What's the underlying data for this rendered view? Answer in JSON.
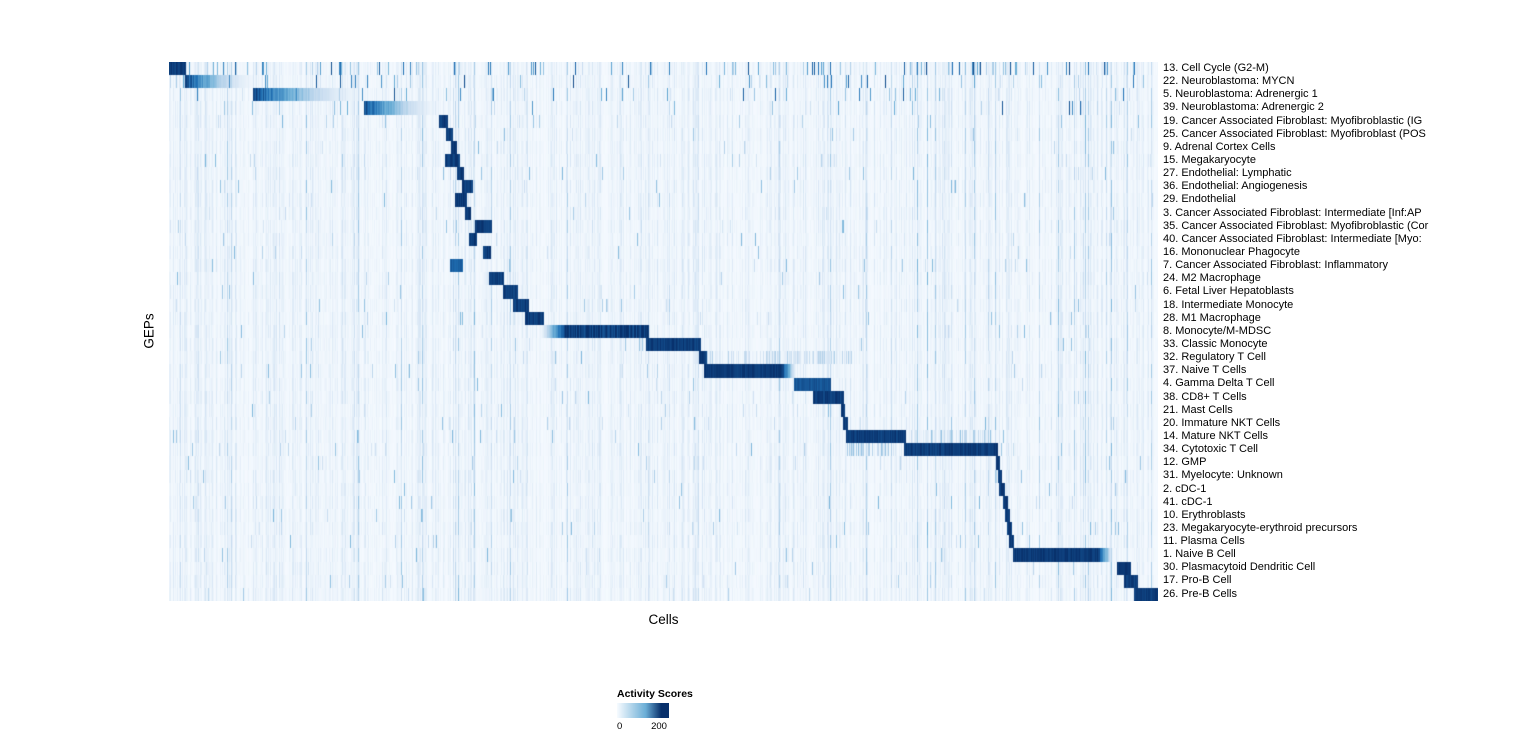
{
  "chart_data": {
    "type": "heatmap",
    "title": "",
    "xlabel": "Cells",
    "ylabel": "GEPs",
    "x_tick_labels": [],
    "grid": false,
    "colormap": {
      "name": "Blues",
      "low": "#f7fbff",
      "mid": "#6baed6",
      "high": "#08306b"
    },
    "legend": {
      "title": "Activity Scores",
      "min": 0,
      "max": 200,
      "min_label": "0",
      "max_label": "200",
      "position": "bottom"
    },
    "rows": [
      {
        "label": "13. Cell Cycle (G2-M)",
        "block_start": 0.0,
        "block_end": 0.017,
        "speckle": 0.1
      },
      {
        "label": "22. Neuroblastoma: MYCN",
        "block_start": 0.016,
        "block_end": 0.09,
        "fade": "right",
        "speckle": 0.03
      },
      {
        "label": "5. Neuroblastoma: Adrenergic 1",
        "block_start": 0.085,
        "block_end": 0.2,
        "fade": "right",
        "speckle": 0.03
      },
      {
        "label": "39. Neuroblastoma: Adrenergic 2",
        "block_start": 0.197,
        "block_end": 0.275,
        "fade": "right",
        "speckle": 0.02
      },
      {
        "label": "19. Cancer Associated Fibroblast: Myofibroblastic (IG",
        "block_start": 0.273,
        "block_end": 0.282
      },
      {
        "label": "25. Cancer Associated Fibroblast: Myofibroblast (POS",
        "block_start": 0.28,
        "block_end": 0.287
      },
      {
        "label": "9. Adrenal Cortex Cells",
        "block_start": 0.285,
        "block_end": 0.291
      },
      {
        "label": "15. Megakaryocyte",
        "block_start": 0.279,
        "block_end": 0.294
      },
      {
        "label": "27. Endothelial: Lymphatic",
        "block_start": 0.291,
        "block_end": 0.298
      },
      {
        "label": "36. Endothelial: Angiogenesis",
        "block_start": 0.296,
        "block_end": 0.307
      },
      {
        "label": "29. Endothelial",
        "block_start": 0.289,
        "block_end": 0.301
      },
      {
        "label": "3. Cancer Associated Fibroblast: Intermediate [Inf:AP",
        "block_start": 0.299,
        "block_end": 0.305
      },
      {
        "label": "35. Cancer Associated Fibroblast: Myofibroblastic (Cor",
        "block_start": 0.309,
        "block_end": 0.327
      },
      {
        "label": "40. Cancer Associated Fibroblast: Intermediate [Myo:",
        "block_start": 0.303,
        "block_end": 0.311
      },
      {
        "label": "16. Mononuclear Phagocyte",
        "block_start": 0.317,
        "block_end": 0.326
      },
      {
        "label": "7. Cancer Associated Fibroblast: Inflammatory",
        "block_start": 0.284,
        "block_end": 0.297,
        "intensity": 0.85
      },
      {
        "label": "24. M2 Macrophage",
        "block_start": 0.324,
        "block_end": 0.339
      },
      {
        "label": "6. Fetal Liver Hepatoblasts",
        "block_start": 0.338,
        "block_end": 0.353
      },
      {
        "label": "18. Intermediate Monocyte",
        "block_start": 0.348,
        "block_end": 0.364
      },
      {
        "label": "28. M1 Macrophage",
        "block_start": 0.36,
        "block_end": 0.379
      },
      {
        "label": "8. Monocyte/M-MDSC",
        "block_start": 0.376,
        "block_end": 0.485,
        "fade": "left"
      },
      {
        "label": "33. Classic Monocyte",
        "block_start": 0.482,
        "block_end": 0.538
      },
      {
        "label": "32. Regulatory T Cell",
        "block_start": 0.536,
        "block_end": 0.544,
        "band": [
          0.54,
          0.69,
          0.25
        ]
      },
      {
        "label": "37. Naive T Cells",
        "block_start": 0.541,
        "block_end": 0.634,
        "fade": "tail"
      },
      {
        "label": "4. Gamma Delta T Cell",
        "block_start": 0.632,
        "block_end": 0.669,
        "intensity": 0.9
      },
      {
        "label": "38. CD8+ T Cells",
        "block_start": 0.651,
        "block_end": 0.683
      },
      {
        "label": "21. Mast Cells",
        "block_start": 0.679,
        "block_end": 0.684
      },
      {
        "label": "20. Immature NKT Cells",
        "block_start": 0.681,
        "block_end": 0.687
      },
      {
        "label": "14. Mature NKT Cells",
        "block_start": 0.685,
        "block_end": 0.745,
        "band": [
          0.74,
          0.84,
          0.3
        ]
      },
      {
        "label": "34. Cytotoxic T Cell",
        "block_start": 0.743,
        "block_end": 0.838,
        "band": [
          0.685,
          0.745,
          0.3
        ]
      },
      {
        "label": "12. GMP",
        "block_start": 0.836,
        "block_end": 0.84
      },
      {
        "label": "31. Myelocyte: Unknown",
        "block_start": 0.838,
        "block_end": 0.842
      },
      {
        "label": "2. cDC-1",
        "block_start": 0.839,
        "block_end": 0.845
      },
      {
        "label": "41. cDC-1",
        "block_start": 0.843,
        "block_end": 0.848
      },
      {
        "label": "10. Erythroblasts",
        "block_start": 0.845,
        "block_end": 0.85
      },
      {
        "label": "23. Megakaryocyte-erythroid precursors",
        "block_start": 0.847,
        "block_end": 0.852
      },
      {
        "label": "11. Plasma Cells",
        "block_start": 0.849,
        "block_end": 0.854
      },
      {
        "label": "1. Naive B Cell",
        "block_start": 0.853,
        "block_end": 0.954,
        "fade": "tail"
      },
      {
        "label": "30. Plasmacytoid Dendritic Cell",
        "block_start": 0.959,
        "block_end": 0.973
      },
      {
        "label": "17. Pro-B Cell",
        "block_start": 0.966,
        "block_end": 0.98
      },
      {
        "label": "26. Pre-B Cells",
        "block_start": 0.976,
        "block_end": 1.0
      }
    ]
  }
}
